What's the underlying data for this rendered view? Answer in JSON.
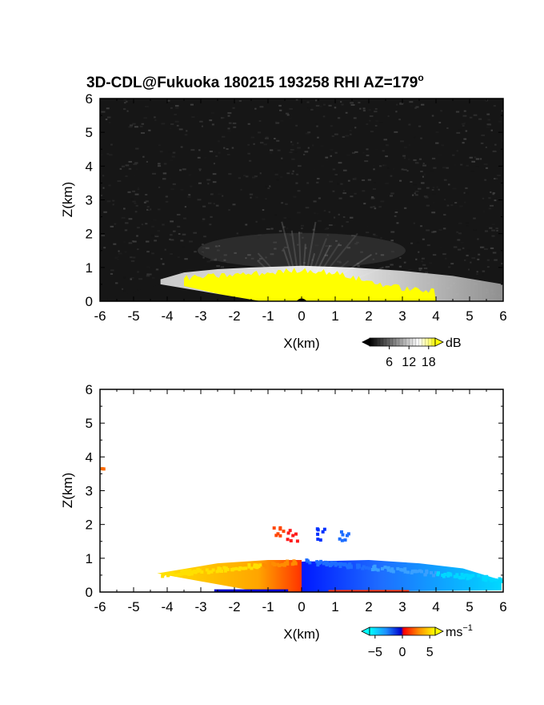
{
  "title": {
    "main": "3D-CDL@Fukuoka 180215 193258 RHI AZ=179",
    "degree": "o"
  },
  "chart_data": [
    {
      "type": "heatmap",
      "panel": "reflectivity",
      "xlabel": "X(km)",
      "ylabel": "Z(km)",
      "xlim": [
        -6,
        6
      ],
      "ylim": [
        0,
        6
      ],
      "xticks": [
        -6,
        -5,
        -4,
        -3,
        -2,
        -1,
        0,
        1,
        2,
        3,
        4,
        5,
        6
      ],
      "yticks": [
        0,
        1,
        2,
        3,
        4,
        5,
        6
      ],
      "background_color": "#161616",
      "saturated_color": "#ffff00",
      "colorbar": {
        "unit": "dB",
        "ticks": [
          6,
          12,
          18
        ],
        "range": [
          0,
          20
        ],
        "colors": [
          "#000000",
          "#ffffff",
          "#ffff00"
        ]
      },
      "echo_profile": [
        {
          "x": -4.2,
          "top": 0.65
        },
        {
          "x": -3.5,
          "top": 0.85
        },
        {
          "x": -2.5,
          "top": 0.95
        },
        {
          "x": -1.5,
          "top": 1.0
        },
        {
          "x": 0.0,
          "top": 1.05
        },
        {
          "x": 1.5,
          "top": 1.0
        },
        {
          "x": 3.0,
          "top": 0.9
        },
        {
          "x": 4.5,
          "top": 0.75
        },
        {
          "x": 6.0,
          "top": 0.5
        }
      ],
      "saturated_profile": [
        {
          "x": -3.5,
          "top": 0.65
        },
        {
          "x": -2.0,
          "top": 0.75
        },
        {
          "x": -1.0,
          "top": 0.8
        },
        {
          "x": 0.0,
          "top": 0.9
        },
        {
          "x": 1.0,
          "top": 0.8
        },
        {
          "x": 2.0,
          "top": 0.55
        },
        {
          "x": 3.0,
          "top": 0.35
        },
        {
          "x": 4.0,
          "top": 0.25
        }
      ]
    },
    {
      "type": "heatmap",
      "panel": "doppler-velocity",
      "xlabel": "X(km)",
      "ylabel": "Z(km)",
      "xlim": [
        -6,
        6
      ],
      "ylim": [
        0,
        6
      ],
      "xticks": [
        -6,
        -5,
        -4,
        -3,
        -2,
        -1,
        0,
        1,
        2,
        3,
        4,
        5,
        6
      ],
      "yticks": [
        0,
        1,
        2,
        3,
        4,
        5,
        6
      ],
      "colorbar": {
        "unit": "ms",
        "unit_exponent": "−1",
        "ticks": [
          "−5",
          "0",
          "5"
        ],
        "tick_values": [
          -5,
          0,
          5
        ],
        "range": [
          -6,
          6
        ],
        "colors": [
          "#00ffff",
          "#1e90ff",
          "#0000cd",
          "#ff0000",
          "#ff8c00",
          "#ffff00"
        ]
      },
      "approaching_side": {
        "x_range": [
          -4.3,
          0
        ],
        "top_km": 0.95,
        "color_far": "#ffe000",
        "color_near": "#ff4500"
      },
      "receding_side": {
        "x_range": [
          0,
          6
        ],
        "top_km": 0.9,
        "color_near": "#0020ff",
        "color_far": "#00d8ff"
      },
      "isolated_echoes": [
        {
          "x": -5.95,
          "z": 3.7,
          "velocity": 4
        },
        {
          "x": -0.7,
          "z": 1.8,
          "velocity": 3
        },
        {
          "x": -0.3,
          "z": 1.7,
          "velocity": 1
        },
        {
          "x": 0.5,
          "z": 1.75,
          "velocity": -4
        },
        {
          "x": 1.2,
          "z": 1.7,
          "velocity": -3
        }
      ]
    }
  ]
}
